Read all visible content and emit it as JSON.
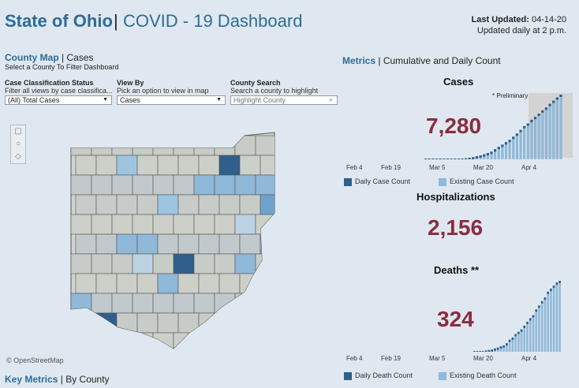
{
  "header": {
    "title_state": "State of Ohio",
    "title_sep": "|",
    "title_dashboard": "COVID - 19 Dashboard",
    "last_updated_label": "Last Updated:",
    "last_updated_value": "04-14-20",
    "update_schedule": "Updated daily at 2 p.m."
  },
  "county_panel": {
    "title_bold": "County Map",
    "title_sep": "|",
    "title_rest": "Cases",
    "subtitle": "Select a County To Filter Dashboard",
    "filters": {
      "classification": {
        "label": "Case Classification Status",
        "sub": "Filter all views by case classifica...",
        "value": "(All) Total Cases"
      },
      "view_by": {
        "label": "View By",
        "sub": "Pick an option to view in map",
        "value": "Cases"
      },
      "search": {
        "label": "County Search",
        "sub": "Search a county to highlight",
        "placeholder": "Highlight County"
      }
    },
    "attribution": "© OpenStreetMap"
  },
  "key_metrics": {
    "bold": "Key Metrics",
    "sep": "|",
    "rest": "By County"
  },
  "metrics_panel": {
    "title_bold": "Metrics",
    "title_sep": "|",
    "title_rest": "Cumulative and Daily Count",
    "cases": {
      "heading": "Cases",
      "value": "7,280",
      "preliminary": "* Preliminary"
    },
    "hospitalizations": {
      "heading": "Hospitalizations",
      "value": "2,156"
    },
    "deaths": {
      "heading": "Deaths **",
      "value": "324"
    },
    "case_legend": {
      "daily": "Daily Case Count",
      "existing": "Existing Case Count"
    },
    "death_legend": {
      "daily": "Daily Death Count",
      "existing": "Existing Death Count"
    },
    "x_ticks": [
      "Feb 4",
      "Feb 19",
      "Mar 5",
      "Mar 20",
      "Apr 4"
    ]
  },
  "colors": {
    "accent": "#2e6b95",
    "big_number": "#8b2c3f",
    "daily": "#2f5f8a",
    "existing": "#8fb8d9",
    "preliminary_bg": "#d3d3d3"
  },
  "chart_data": [
    {
      "type": "bar",
      "title": "Cases",
      "x_ticks": [
        "Feb 4",
        "Feb 19",
        "Mar 5",
        "Mar 20",
        "Apr 4"
      ],
      "series": [
        {
          "name": "Existing Case Count",
          "values": [
            1,
            3,
            5,
            9,
            14,
            20,
            27,
            38,
            50,
            67,
            88,
            119,
            169,
            247,
            351,
            442,
            564,
            704,
            867,
            1137,
            1406,
            1653,
            1933,
            2199,
            2547,
            2902,
            3312,
            3739,
            4043,
            4450,
            4782,
            5148,
            5512,
            5836,
            6250,
            6604,
            6975,
            7280
          ]
        }
      ]
    },
    {
      "type": "bar",
      "title": "Deaths **",
      "x_ticks": [
        "Feb 4",
        "Feb 19",
        "Mar 5",
        "Mar 20",
        "Apr 4"
      ],
      "series": [
        {
          "name": "Existing Death Count",
          "values": [
            1,
            2,
            3,
            3,
            6,
            8,
            10,
            15,
            19,
            25,
            29,
            39,
            55,
            65,
            81,
            91,
            102,
            119,
            137,
            153,
            167,
            193,
            211,
            231,
            248,
            274,
            288,
            302,
            316,
            324
          ]
        }
      ]
    }
  ]
}
